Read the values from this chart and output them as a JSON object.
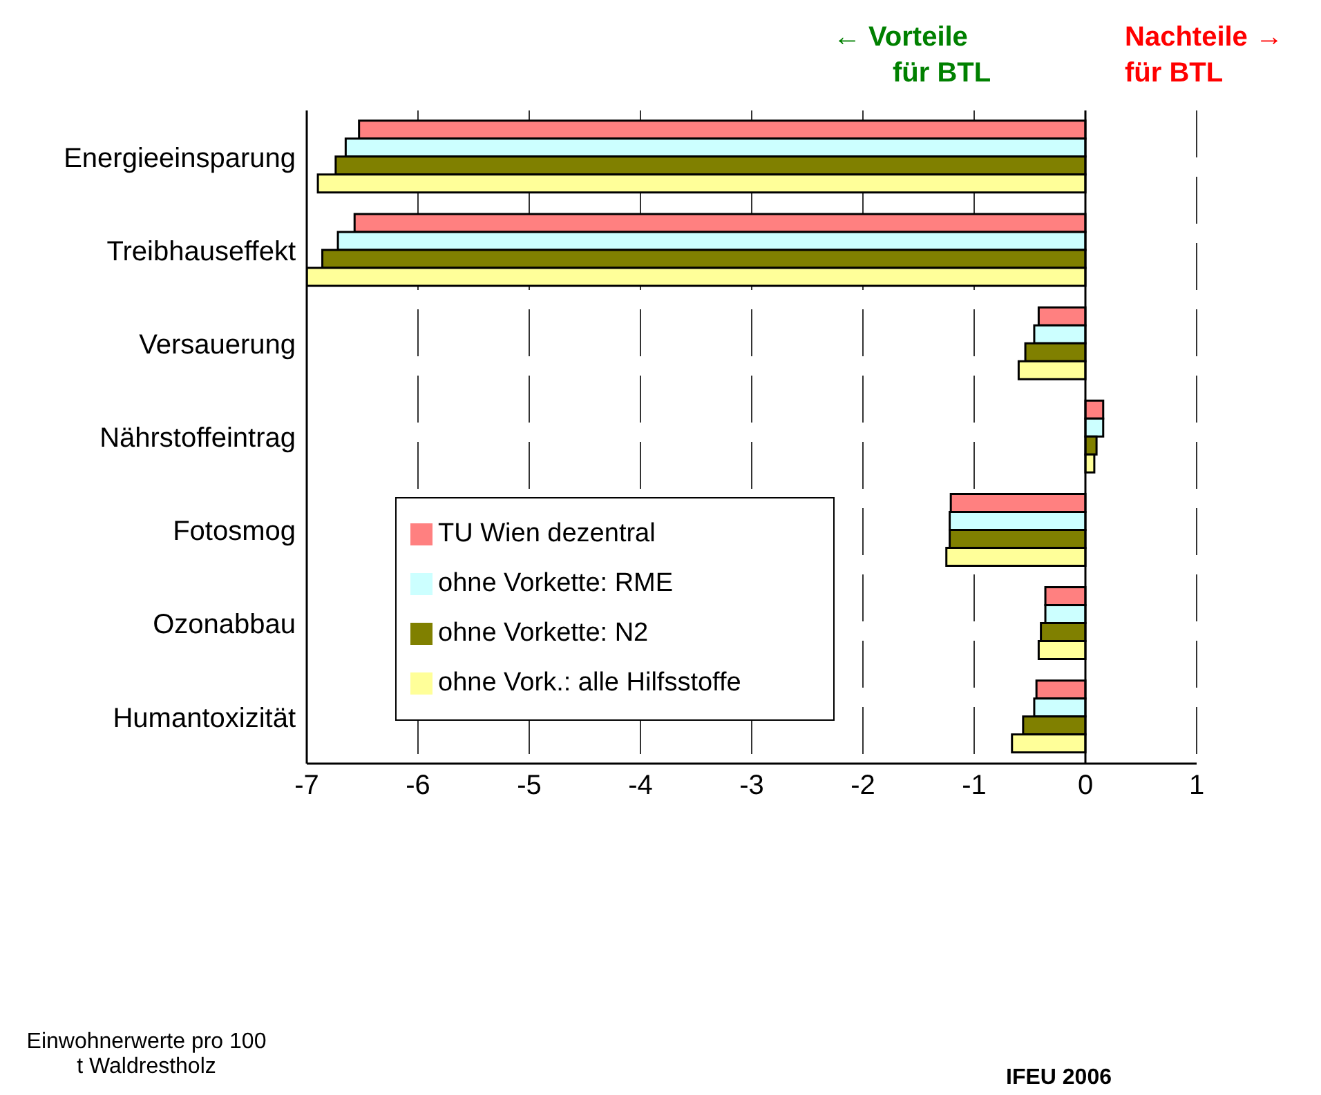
{
  "chart_data": {
    "type": "bar",
    "orientation": "horizontal",
    "categories": [
      "Energieeinsparung",
      "Treibhauseffekt",
      "Versauerung",
      "Nährstoffeintrag",
      "Fotosmog",
      "Ozonabbau",
      "Humantoxizität"
    ],
    "series": [
      {
        "name": "TU Wien dezentral",
        "color": "#ff8080",
        "values": [
          -6.53,
          -6.57,
          -0.42,
          0.16,
          -1.21,
          -0.36,
          -0.44
        ]
      },
      {
        "name": "ohne Vorkette: RME",
        "color": "#ccffff",
        "values": [
          -6.65,
          -6.72,
          -0.46,
          0.16,
          -1.22,
          -0.36,
          -0.46
        ]
      },
      {
        "name": "ohne Vorkette: N2",
        "color": "#808000",
        "values": [
          -6.74,
          -6.86,
          -0.54,
          0.1,
          -1.22,
          -0.4,
          -0.56
        ]
      },
      {
        "name": "ohne Vork.: alle Hilfsstoffe",
        "color": "#ffff99",
        "values": [
          -6.9,
          -7,
          -0.6,
          0.08,
          -1.25,
          -0.42,
          -0.66
        ]
      }
    ],
    "xlim": [
      -7,
      1
    ],
    "xticks": [
      -7,
      -6,
      -5,
      -4,
      -3,
      -2,
      -1,
      0,
      1
    ],
    "grid": "x",
    "legend": "left",
    "ref_lines": [
      {
        "axis": "x",
        "value": 0
      }
    ],
    "annotations": [
      "← Vorteile",
      "für BTL",
      "Nachteile →",
      "für BTL",
      "Einwohnerwerte pro 100 t Waldrestholz",
      "IFEU 2006"
    ]
  }
}
